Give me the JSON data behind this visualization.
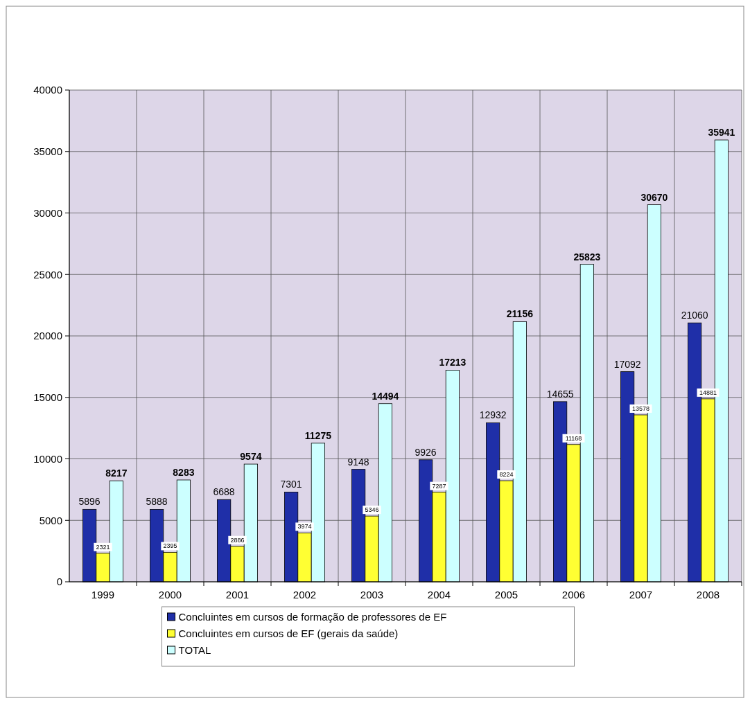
{
  "chart_data": {
    "type": "bar",
    "categories": [
      "1999",
      "2000",
      "2001",
      "2002",
      "2003",
      "2004",
      "2005",
      "2006",
      "2007",
      "2008"
    ],
    "series": [
      {
        "name": "Concluintes em cursos de formação de professores de EF",
        "color": "#1f2fa8",
        "values": [
          5896,
          5888,
          6688,
          7301,
          9148,
          9926,
          12932,
          14655,
          17092,
          21060
        ]
      },
      {
        "name": "Concluintes em cursos de EF (gerais da saúde)",
        "color": "#ffff33",
        "values": [
          2321,
          2395,
          2886,
          3974,
          5346,
          7287,
          8224,
          11168,
          13578,
          14881
        ]
      },
      {
        "name": "TOTAL",
        "color": "#ccffff",
        "values": [
          8217,
          8283,
          9574,
          11275,
          14494,
          17213,
          21156,
          25823,
          30670,
          35941
        ]
      }
    ],
    "ylim": [
      0,
      40000
    ],
    "yticks": [
      0,
      5000,
      10000,
      15000,
      20000,
      25000,
      30000,
      35000,
      40000
    ],
    "grid": true,
    "legend": "bottom",
    "data_labels": true
  }
}
